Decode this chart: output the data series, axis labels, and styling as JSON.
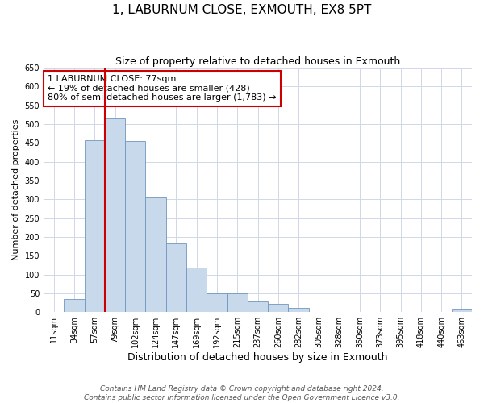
{
  "title": "1, LABURNUM CLOSE, EXMOUTH, EX8 5PT",
  "subtitle": "Size of property relative to detached houses in Exmouth",
  "xlabel": "Distribution of detached houses by size in Exmouth",
  "ylabel": "Number of detached properties",
  "bin_labels": [
    "11sqm",
    "34sqm",
    "57sqm",
    "79sqm",
    "102sqm",
    "124sqm",
    "147sqm",
    "169sqm",
    "192sqm",
    "215sqm",
    "237sqm",
    "260sqm",
    "282sqm",
    "305sqm",
    "328sqm",
    "350sqm",
    "373sqm",
    "395sqm",
    "418sqm",
    "440sqm",
    "463sqm"
  ],
  "bar_heights": [
    0,
    35,
    458,
    515,
    455,
    305,
    182,
    118,
    50,
    50,
    28,
    22,
    12,
    0,
    0,
    0,
    0,
    0,
    0,
    0,
    8
  ],
  "bar_color": "#c9d9ec",
  "bar_edge_color": "#7096be",
  "vline_x": 2.5,
  "vline_color": "#cc0000",
  "ylim": [
    0,
    650
  ],
  "yticks": [
    0,
    50,
    100,
    150,
    200,
    250,
    300,
    350,
    400,
    450,
    500,
    550,
    600,
    650
  ],
  "annotation_title": "1 LABURNUM CLOSE: 77sqm",
  "annotation_line1": "← 19% of detached houses are smaller (428)",
  "annotation_line2": "80% of semi-detached houses are larger (1,783) →",
  "annotation_box_color": "#ffffff",
  "annotation_box_edge": "#cc0000",
  "footnote1": "Contains HM Land Registry data © Crown copyright and database right 2024.",
  "footnote2": "Contains public sector information licensed under the Open Government Licence v3.0.",
  "title_fontsize": 11,
  "subtitle_fontsize": 9,
  "xlabel_fontsize": 9,
  "ylabel_fontsize": 8,
  "tick_fontsize": 7,
  "annotation_fontsize": 8,
  "footnote_fontsize": 6.5,
  "background_color": "#ffffff",
  "grid_color": "#d0d8e8"
}
